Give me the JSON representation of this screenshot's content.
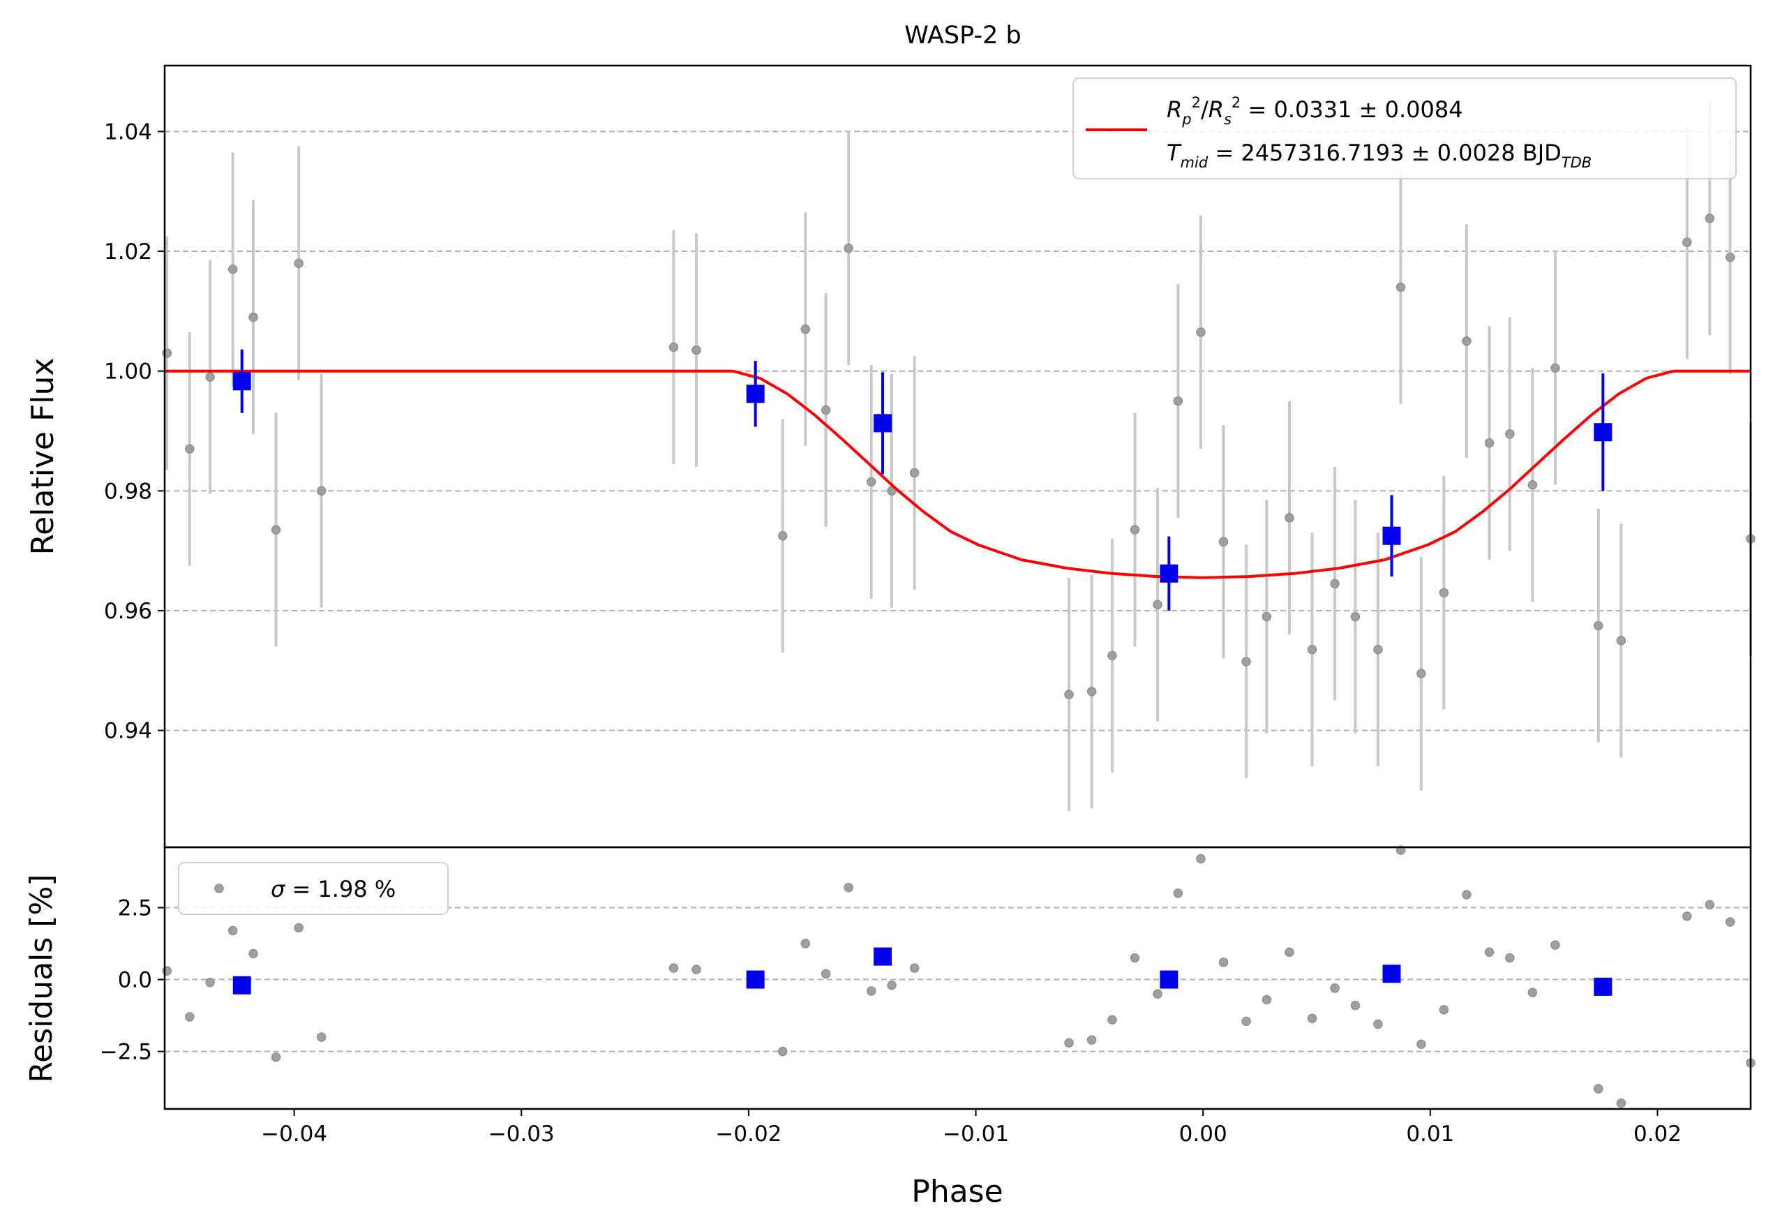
{
  "chart_data": [
    {
      "type": "scatter",
      "title": "WASP-2 b",
      "xlabel": "",
      "ylabel": "Relative Flux",
      "xlim": [
        -0.0457,
        0.0241
      ],
      "ylim": [
        0.9205,
        1.051
      ],
      "yticks": [
        0.94,
        0.96,
        0.98,
        1.0,
        1.02,
        1.04
      ],
      "ytick_labels": [
        "0.94",
        "0.96",
        "0.98",
        "1.00",
        "1.02",
        "1.04"
      ],
      "grid": "y dashed",
      "legend_position": "top-right",
      "legend": {
        "rp_pre": "R",
        "rp_sub": "p",
        "rp_sup": "2",
        "slash": "/",
        "rs_pre": "R",
        "rs_sub": "s",
        "rs_sup": "2",
        "rp_value": " = 0.0331 ± 0.0084",
        "t_pre": "T",
        "t_sub": "mid",
        "t_value": " = 2457316.7193 ± 0.0028 BJD",
        "t_unit_sub": "TDB"
      },
      "colors": {
        "raw": "#a0a0a0",
        "errbar": "#c8c8c8",
        "binned": "#0000ee",
        "model": "#ff0000",
        "grid": "#b0b0b0"
      },
      "series": [
        {
          "kind": "raw",
          "x": [
            -0.0456,
            -0.0446,
            -0.0437,
            -0.0427,
            -0.0418,
            -0.0408,
            -0.0398,
            -0.0388,
            -0.0233,
            -0.0223,
            -0.0185,
            -0.0175,
            -0.0166,
            -0.0156,
            -0.0146,
            -0.0137,
            -0.0127,
            -0.0059,
            -0.0049,
            -0.004,
            -0.003,
            -0.002,
            -0.0011,
            -0.0001,
            0.0009,
            0.0019,
            0.0028,
            0.0038,
            0.0048,
            0.0058,
            0.0067,
            0.0077,
            0.0087,
            0.0096,
            0.0106,
            0.0116,
            0.0126,
            0.0135,
            0.0145,
            0.0155,
            0.0174,
            0.0184,
            0.0213,
            0.0223,
            0.0232,
            0.0241
          ],
          "y": [
            1.003,
            0.987,
            0.999,
            1.017,
            1.009,
            0.9735,
            1.018,
            0.98,
            1.004,
            1.0035,
            0.9725,
            1.007,
            0.9935,
            1.0205,
            0.9815,
            0.98,
            0.983,
            0.946,
            0.9465,
            0.9525,
            0.9735,
            0.961,
            0.995,
            1.0065,
            0.9715,
            0.9515,
            0.959,
            0.9755,
            0.9535,
            0.9645,
            0.959,
            0.9535,
            1.014,
            0.9495,
            0.963,
            1.005,
            0.988,
            0.9895,
            0.981,
            1.0005,
            0.9575,
            0.955,
            1.0215,
            1.0255,
            1.019,
            0.972
          ],
          "yerr": 0.0195
        },
        {
          "kind": "binned",
          "x": [
            -0.0423,
            -0.0197,
            -0.0141,
            -0.0015,
            0.0083,
            0.0176
          ],
          "y": [
            0.9983,
            0.9962,
            0.9913,
            0.9662,
            0.9725,
            0.9898
          ],
          "yerr": [
            0.0053,
            0.0055,
            0.0085,
            0.0062,
            0.0068,
            0.0098
          ]
        },
        {
          "kind": "model",
          "x": [
            -0.0457,
            -0.0207,
            -0.0195,
            -0.0183,
            -0.0171,
            -0.0159,
            -0.0147,
            -0.0135,
            -0.0123,
            -0.0111,
            -0.0099,
            -0.008,
            -0.006,
            -0.004,
            -0.002,
            0.0,
            0.002,
            0.004,
            0.006,
            0.008,
            0.0099,
            0.0111,
            0.0123,
            0.0135,
            0.0147,
            0.0159,
            0.0171,
            0.0183,
            0.0195,
            0.0207,
            0.0241
          ],
          "y": [
            1.0,
            1.0,
            0.9988,
            0.9962,
            0.9927,
            0.9887,
            0.9845,
            0.9803,
            0.9765,
            0.9732,
            0.971,
            0.9685,
            0.9671,
            0.9662,
            0.9657,
            0.9655,
            0.9657,
            0.9662,
            0.9671,
            0.9685,
            0.971,
            0.9732,
            0.9765,
            0.9803,
            0.9845,
            0.9887,
            0.9927,
            0.9962,
            0.9988,
            1.0,
            1.0
          ]
        }
      ]
    },
    {
      "type": "scatter",
      "title": "",
      "xlabel": "Phase",
      "ylabel": "Residuals [%]",
      "xlim": [
        -0.0457,
        0.0241
      ],
      "ylim": [
        -4.5,
        4.6
      ],
      "yticks": [
        -2.5,
        0.0,
        2.5
      ],
      "ytick_labels": [
        "−2.5",
        "0.0",
        "2.5"
      ],
      "xticks": [
        -0.04,
        -0.03,
        -0.02,
        -0.01,
        0.0,
        0.01,
        0.02
      ],
      "xtick_labels": [
        "−0.04",
        "−0.03",
        "−0.02",
        "−0.01",
        "0.00",
        "0.01",
        "0.02"
      ],
      "grid": "y dashed",
      "legend_position": "top-left",
      "legend": {
        "sigma_symbol": "σ",
        "sigma_text": " = 1.98 %"
      },
      "series": [
        {
          "kind": "raw",
          "x": [
            -0.0456,
            -0.0446,
            -0.0437,
            -0.0427,
            -0.0418,
            -0.0408,
            -0.0398,
            -0.0388,
            -0.0233,
            -0.0223,
            -0.0185,
            -0.0175,
            -0.0166,
            -0.0156,
            -0.0146,
            -0.0137,
            -0.0127,
            -0.0059,
            -0.0049,
            -0.004,
            -0.003,
            -0.002,
            -0.0011,
            -0.0001,
            0.0009,
            0.0019,
            0.0028,
            0.0038,
            0.0048,
            0.0058,
            0.0067,
            0.0077,
            0.0087,
            0.0096,
            0.0106,
            0.0116,
            0.0126,
            0.0135,
            0.0145,
            0.0155,
            0.0174,
            0.0184,
            0.0213,
            0.0223,
            0.0232,
            0.0241
          ],
          "y": [
            0.3,
            -1.3,
            -0.1,
            1.7,
            0.9,
            -2.7,
            1.8,
            -2.0,
            0.4,
            0.35,
            -2.5,
            1.25,
            0.2,
            3.2,
            -0.4,
            -0.2,
            0.4,
            -2.2,
            -2.1,
            -1.4,
            0.75,
            -0.5,
            3.0,
            4.2,
            0.6,
            -1.45,
            -0.7,
            0.95,
            -1.35,
            -0.3,
            -0.9,
            -1.55,
            4.5,
            -2.25,
            -1.05,
            2.95,
            0.95,
            0.75,
            -0.45,
            1.2,
            -3.8,
            -4.3,
            2.2,
            2.6,
            2.0,
            -2.9
          ]
        },
        {
          "kind": "binned",
          "x": [
            -0.0423,
            -0.0197,
            -0.0141,
            -0.0015,
            0.0083,
            0.0176
          ],
          "y": [
            -0.2,
            0.0,
            0.8,
            0.0,
            0.2,
            -0.25
          ]
        }
      ]
    }
  ]
}
